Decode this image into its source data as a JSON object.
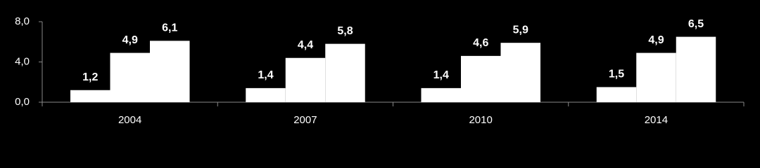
{
  "chart_data": {
    "type": "bar",
    "categories": [
      "2004",
      "2007",
      "2010",
      "2014"
    ],
    "series": [
      {
        "color": "#ffffff",
        "values": [
          1.2,
          1.4,
          1.4,
          1.5
        ],
        "value_labels": [
          "1,2",
          "1,4",
          "1,4",
          "1,5"
        ]
      },
      {
        "color": "#ffffff",
        "values": [
          4.9,
          4.4,
          4.6,
          4.9
        ],
        "value_labels": [
          "4,9",
          "4,4",
          "4,6",
          "4,9"
        ]
      },
      {
        "color": "#ffffff",
        "values": [
          6.1,
          5.8,
          5.9,
          6.5
        ],
        "value_labels": [
          "6,1",
          "5,8",
          "5,9",
          "6,5"
        ]
      }
    ],
    "ylim": [
      0,
      8
    ],
    "yticks": [
      {
        "value": 0,
        "label": "0,0"
      },
      {
        "value": 4,
        "label": "4,0"
      },
      {
        "value": 8,
        "label": "8,0"
      }
    ],
    "grid": false
  }
}
